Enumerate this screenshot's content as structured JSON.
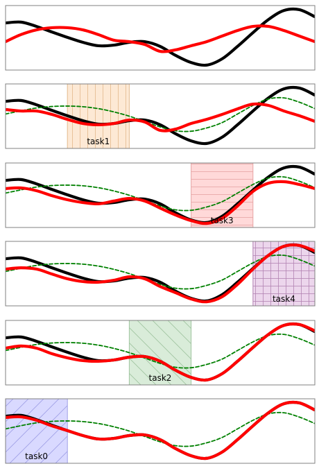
{
  "chart_data": [
    {
      "type": "line",
      "xlim": [
        0,
        10
      ],
      "ylim": [
        -1.5,
        1.5
      ],
      "x": [
        0,
        0.5,
        1,
        1.5,
        2,
        2.5,
        3,
        3.5,
        4,
        4.5,
        5,
        5.5,
        6,
        6.5,
        7,
        7.5,
        8,
        8.5,
        9,
        9.5,
        10
      ],
      "series": [
        {
          "color": "#000000",
          "linestyle": "solid",
          "values": [
            0.69,
            0.73,
            0.53,
            0.27,
            0.02,
            -0.21,
            -0.37,
            -0.34,
            -0.21,
            -0.18,
            -0.4,
            -0.82,
            -1.15,
            -1.27,
            -0.98,
            -0.4,
            0.24,
            0.85,
            1.27,
            1.31,
            0.98
          ]
        },
        {
          "color": "#ff0000",
          "linestyle": "solid",
          "values": [
            -0.18,
            0.15,
            0.37,
            0.47,
            0.47,
            0.37,
            0.15,
            -0.11,
            -0.18,
            -0.31,
            -0.63,
            -0.56,
            -0.37,
            -0.18,
            0.08,
            0.34,
            0.53,
            0.53,
            0.34,
            0.08,
            -0.18
          ]
        }
      ]
    },
    {
      "type": "line",
      "xlim": [
        0,
        10
      ],
      "ylim": [
        -1.5,
        1.5
      ],
      "x": [
        0,
        0.5,
        1,
        1.5,
        2,
        2.5,
        3,
        3.5,
        4,
        4.5,
        5,
        5.5,
        6,
        6.5,
        7,
        7.5,
        8,
        8.5,
        9,
        9.5,
        10
      ],
      "series": [
        {
          "color": "#000000",
          "linestyle": "solid",
          "values": [
            0.69,
            0.73,
            0.53,
            0.27,
            0.02,
            -0.21,
            -0.37,
            -0.34,
            -0.21,
            -0.18,
            -0.4,
            -0.82,
            -1.15,
            -1.27,
            -0.98,
            -0.4,
            0.24,
            0.85,
            1.27,
            1.31,
            0.98
          ]
        },
        {
          "color": "#008000",
          "linestyle": "dashed",
          "values": [
            0.1,
            0.25,
            0.38,
            0.45,
            0.47,
            0.44,
            0.35,
            0.2,
            0.0,
            -0.25,
            -0.5,
            -0.68,
            -0.7,
            -0.55,
            -0.3,
            0.1,
            0.5,
            0.8,
            0.85,
            0.65,
            0.35
          ]
        },
        {
          "color": "#ff0000",
          "linestyle": "solid",
          "values": [
            0.31,
            0.24,
            0.24,
            0.08,
            -0.15,
            -0.34,
            -0.4,
            -0.34,
            -0.18,
            -0.27,
            -0.66,
            -0.6,
            -0.34,
            -0.15,
            0.08,
            0.34,
            0.56,
            0.5,
            0.24,
            0.02,
            -0.24
          ]
        }
      ],
      "region": {
        "label": "task1",
        "xrange": [
          2,
          4
        ],
        "color": "#fde9d5",
        "edgecolor": "#e3b98c",
        "hatch": "|"
      }
    },
    {
      "type": "line",
      "xlim": [
        0,
        10
      ],
      "ylim": [
        -1.5,
        1.5
      ],
      "x": [
        0,
        0.5,
        1,
        1.5,
        2,
        2.5,
        3,
        3.5,
        4,
        4.5,
        5,
        5.5,
        6,
        6.5,
        7,
        7.5,
        8,
        8.5,
        9,
        9.5,
        10
      ],
      "series": [
        {
          "color": "#000000",
          "linestyle": "solid",
          "values": [
            0.69,
            0.73,
            0.53,
            0.27,
            0.02,
            -0.21,
            -0.37,
            -0.34,
            -0.21,
            -0.18,
            -0.4,
            -0.82,
            -1.15,
            -1.27,
            -0.98,
            -0.4,
            0.24,
            0.85,
            1.27,
            1.31,
            0.98
          ]
        },
        {
          "color": "#008000",
          "linestyle": "dashed",
          "values": [
            0.1,
            0.25,
            0.38,
            0.45,
            0.47,
            0.44,
            0.35,
            0.2,
            0.0,
            -0.25,
            -0.5,
            -0.68,
            -0.7,
            -0.55,
            -0.3,
            0.1,
            0.5,
            0.8,
            0.85,
            0.65,
            0.35
          ]
        },
        {
          "color": "#ff0000",
          "linestyle": "solid",
          "values": [
            0.31,
            0.34,
            0.21,
            -0.02,
            -0.21,
            -0.34,
            -0.4,
            -0.27,
            -0.15,
            -0.27,
            -0.6,
            -0.92,
            -1.18,
            -1.31,
            -1.08,
            -0.5,
            0.18,
            0.56,
            0.63,
            0.5,
            0.31
          ]
        }
      ],
      "region": {
        "label": "task3",
        "xrange": [
          6,
          8
        ],
        "color": "#ffd9d9",
        "edgecolor": "#e6a3a3",
        "hatch": "-"
      }
    },
    {
      "type": "line",
      "xlim": [
        0,
        10
      ],
      "ylim": [
        -1.5,
        1.5
      ],
      "x": [
        0,
        0.5,
        1,
        1.5,
        2,
        2.5,
        3,
        3.5,
        4,
        4.5,
        5,
        5.5,
        6,
        6.5,
        7,
        7.5,
        8,
        8.5,
        9,
        9.5,
        10
      ],
      "series": [
        {
          "color": "#000000",
          "linestyle": "solid",
          "values": [
            0.69,
            0.73,
            0.53,
            0.27,
            0.02,
            -0.21,
            -0.37,
            -0.34,
            -0.21,
            -0.18,
            -0.4,
            -0.82,
            -1.15,
            -1.27,
            -0.98,
            -0.4,
            0.24,
            0.85,
            1.27,
            1.31,
            0.98
          ]
        },
        {
          "color": "#008000",
          "linestyle": "dashed",
          "values": [
            0.1,
            0.25,
            0.38,
            0.45,
            0.47,
            0.44,
            0.35,
            0.2,
            0.0,
            -0.25,
            -0.5,
            -0.68,
            -0.7,
            -0.55,
            -0.3,
            0.1,
            0.5,
            0.8,
            0.85,
            0.65,
            0.35
          ]
        },
        {
          "color": "#ff0000",
          "linestyle": "solid",
          "values": [
            0.21,
            0.27,
            0.21,
            -0.02,
            -0.24,
            -0.37,
            -0.4,
            -0.31,
            -0.15,
            -0.24,
            -0.6,
            -0.89,
            -1.18,
            -1.31,
            -1.08,
            -0.5,
            0.21,
            0.85,
            1.27,
            1.31,
            1.05
          ]
        }
      ],
      "region": {
        "label": "task4",
        "xrange": [
          8,
          10
        ],
        "color": "#ecd6ec",
        "edgecolor": "#b383b3",
        "hatch": "+"
      }
    },
    {
      "type": "line",
      "xlim": [
        0,
        10
      ],
      "ylim": [
        -1.5,
        1.5
      ],
      "x": [
        0,
        0.5,
        1,
        1.5,
        2,
        2.5,
        3,
        3.5,
        4,
        4.5,
        5,
        5.5,
        6,
        6.5,
        7,
        7.5,
        8,
        8.5,
        9,
        9.5,
        10
      ],
      "series": [
        {
          "color": "#000000",
          "linestyle": "solid",
          "values": [
            0.69,
            0.73,
            0.53,
            0.27,
            0.02,
            -0.21,
            -0.37,
            -0.34,
            -0.21,
            -0.18,
            -0.4,
            -0.82,
            -1.15,
            -1.27,
            -0.98,
            -0.4,
            0.24,
            0.85,
            1.27,
            1.31,
            0.98
          ]
        },
        {
          "color": "#008000",
          "linestyle": "dashed",
          "values": [
            0.1,
            0.25,
            0.38,
            0.45,
            0.47,
            0.44,
            0.35,
            0.2,
            0.0,
            -0.25,
            -0.5,
            -0.68,
            -0.7,
            -0.55,
            -0.3,
            0.1,
            0.5,
            0.8,
            0.85,
            0.65,
            0.35
          ]
        },
        {
          "color": "#ff0000",
          "linestyle": "solid",
          "values": [
            0.21,
            0.31,
            0.21,
            -0.05,
            -0.24,
            -0.37,
            -0.4,
            -0.34,
            -0.21,
            -0.18,
            -0.4,
            -0.82,
            -1.15,
            -1.27,
            -0.98,
            -0.4,
            0.24,
            0.85,
            1.27,
            1.31,
            1.02
          ]
        }
      ],
      "region": {
        "label": "task2",
        "xrange": [
          4,
          6
        ],
        "color": "#d9ecd9",
        "edgecolor": "#9fc49f",
        "hatch": "\\"
      }
    },
    {
      "type": "line",
      "xlim": [
        0,
        10
      ],
      "ylim": [
        -1.5,
        1.5
      ],
      "x": [
        0,
        0.5,
        1,
        1.5,
        2,
        2.5,
        3,
        3.5,
        4,
        4.5,
        5,
        5.5,
        6,
        6.5,
        7,
        7.5,
        8,
        8.5,
        9,
        9.5,
        10
      ],
      "series": [
        {
          "color": "#000000",
          "linestyle": "solid",
          "values": [
            0.69,
            0.73,
            0.53,
            0.27,
            0.02,
            -0.21,
            -0.37,
            -0.34,
            -0.21,
            -0.18,
            -0.4,
            -0.82,
            -1.15,
            -1.27,
            -0.98,
            -0.4,
            0.24,
            0.85,
            1.27,
            1.31,
            0.98
          ]
        },
        {
          "color": "#008000",
          "linestyle": "dashed",
          "values": [
            0.1,
            0.25,
            0.38,
            0.45,
            0.47,
            0.44,
            0.35,
            0.2,
            0.0,
            -0.25,
            -0.5,
            -0.68,
            -0.7,
            -0.55,
            -0.3,
            0.1,
            0.5,
            0.8,
            0.85,
            0.65,
            0.35
          ]
        },
        {
          "color": "#ff0000",
          "linestyle": "solid",
          "values": [
            0.63,
            0.66,
            0.5,
            0.24,
            0.02,
            -0.21,
            -0.37,
            -0.34,
            -0.21,
            -0.18,
            -0.4,
            -0.82,
            -1.15,
            -1.27,
            -0.98,
            -0.4,
            0.24,
            0.85,
            1.27,
            1.31,
            0.98
          ]
        }
      ],
      "region": {
        "label": "task0",
        "xrange": [
          0,
          2
        ],
        "color": "#d9d9ff",
        "edgecolor": "#9e9ee6",
        "hatch": "/"
      }
    }
  ]
}
